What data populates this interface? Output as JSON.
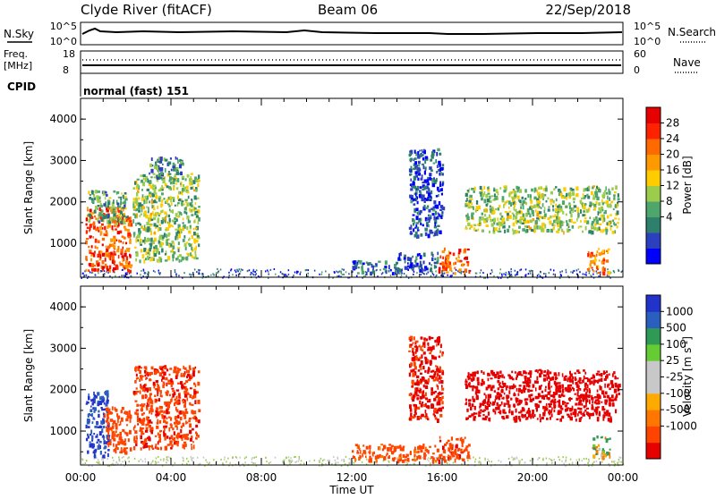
{
  "header": {
    "station": "Clyde River (fitACF)",
    "beam": "Beam 06",
    "date": "22/Sep/2018"
  },
  "top_panel": {
    "left_label": "N.Sky",
    "left_ticks": [
      "10^5",
      "10^0"
    ],
    "right_label": "N.Search",
    "right_ticks": [
      "10^5",
      "10^0"
    ]
  },
  "freq_panel": {
    "left_label_line1": "Freq.",
    "left_label_line2": "[MHz]",
    "left_ticks": [
      "18",
      "8"
    ],
    "right_label": "Nave",
    "right_ticks": [
      "60",
      "0"
    ]
  },
  "cpid": {
    "label": "CPID",
    "mode": "normal (fast) 151"
  },
  "time_axis": {
    "label": "Time UT",
    "ticks": [
      "00:00",
      "04:00",
      "08:00",
      "12:00",
      "16:00",
      "20:00",
      "00:00"
    ]
  },
  "chart_data": [
    {
      "type": "heatmap",
      "quantity": "Power",
      "ylabel": "Slant Range [km]",
      "yticks": [
        "4000",
        "3000",
        "2000",
        "1000"
      ],
      "ylim": [
        180,
        4500
      ],
      "xlim_hours": [
        0,
        24
      ],
      "colorbar": {
        "label": "Power [dB]",
        "ticks": [
          "28",
          "24",
          "20",
          "16",
          "12",
          "8",
          "4"
        ],
        "colors": [
          "#0000ff",
          "#2b3fbf",
          "#2e7f6b",
          "#4ea66a",
          "#9ccc4c",
          "#ffcc00",
          "#ff9900",
          "#ff6a00",
          "#ff2200",
          "#e60000"
        ]
      },
      "patches": [
        {
          "t": [
            0.2,
            2.2
          ],
          "r": [
            350,
            1900
          ],
          "value": 24
        },
        {
          "t": [
            0.3,
            2.0
          ],
          "r": [
            1500,
            2300
          ],
          "value": 12
        },
        {
          "t": [
            2.3,
            5.2
          ],
          "r": [
            600,
            2700
          ],
          "value": 14
        },
        {
          "t": [
            3.0,
            4.5
          ],
          "r": [
            2600,
            3100
          ],
          "value": 10
        },
        {
          "t": [
            12.0,
            14.0
          ],
          "r": [
            300,
            600
          ],
          "value": 8
        },
        {
          "t": [
            14.0,
            15.8
          ],
          "r": [
            350,
            800
          ],
          "value": 6
        },
        {
          "t": [
            15.8,
            17.2
          ],
          "r": [
            300,
            900
          ],
          "value": 24
        },
        {
          "t": [
            14.5,
            16.0
          ],
          "r": [
            1200,
            3300
          ],
          "value": 6
        },
        {
          "t": [
            17.0,
            23.8
          ],
          "r": [
            1300,
            2400
          ],
          "value": 14
        },
        {
          "t": [
            22.4,
            23.4
          ],
          "r": [
            300,
            900
          ],
          "value": 22
        }
      ]
    },
    {
      "type": "heatmap",
      "quantity": "Velocity",
      "ylabel": "Slant Range [km]",
      "yticks": [
        "4000",
        "3000",
        "2000",
        "1000"
      ],
      "ylim": [
        180,
        4500
      ],
      "xlim_hours": [
        0,
        24
      ],
      "colorbar": {
        "label_prefix": "Velocity [m s",
        "label_sup": "-1",
        "label_suffix": "]",
        "ticks": [
          "1000",
          "500",
          "100",
          "25",
          "-25",
          "-100",
          "-500",
          "-1000"
        ],
        "colors": [
          "#e60000",
          "#ff4400",
          "#ff7700",
          "#ffaa00",
          "#c8c8c8",
          "#c8c8c8",
          "#66cc33",
          "#2e9a55",
          "#2b5fbf",
          "#2233cc"
        ]
      },
      "patches": [
        {
          "t": [
            0.2,
            1.2
          ],
          "r": [
            400,
            2000
          ],
          "value": 300
        },
        {
          "t": [
            1.0,
            2.2
          ],
          "r": [
            500,
            1600
          ],
          "value": -120
        },
        {
          "t": [
            2.3,
            5.2
          ],
          "r": [
            600,
            2600
          ],
          "value": -200
        },
        {
          "t": [
            12.0,
            15.8
          ],
          "r": [
            300,
            700
          ],
          "value": -100
        },
        {
          "t": [
            15.8,
            17.2
          ],
          "r": [
            300,
            900
          ],
          "value": -200
        },
        {
          "t": [
            14.5,
            16.0
          ],
          "r": [
            1300,
            3300
          ],
          "value": -300
        },
        {
          "t": [
            17.0,
            23.8
          ],
          "r": [
            1300,
            2500
          ],
          "value": -500
        },
        {
          "t": [
            22.6,
            23.4
          ],
          "r": [
            400,
            900
          ],
          "value": 0
        }
      ]
    }
  ]
}
